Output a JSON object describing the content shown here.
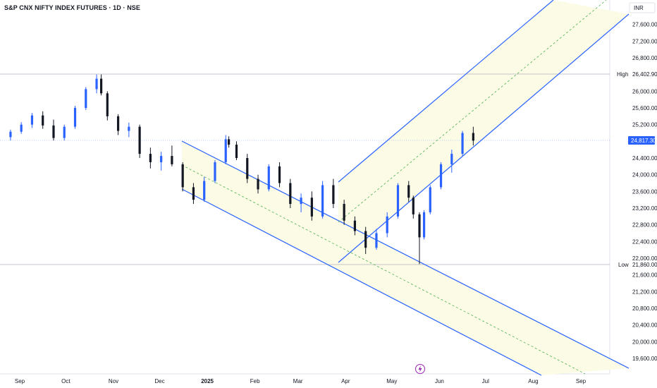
{
  "header": {
    "symbol_title": "S&P CNX NIFTY INDEX FUTURES · 1D · NSE",
    "currency": "INR"
  },
  "colors": {
    "up_candle": "#2962ff",
    "down_candle": "#131722",
    "channel_line": "#2962ff",
    "channel_fill": "#fbfbe6",
    "midline": "#4caf50",
    "ref_line": "#b2b5be",
    "current_price_bg": "#2962ff"
  },
  "icons": {
    "flash": "lightning-bolt-icon"
  },
  "chart_data": {
    "type": "candlestick",
    "title": "S&P CNX NIFTY INDEX FUTURES · 1D · NSE",
    "ylim": [
      19300,
      28000
    ],
    "y_ticks": [
      "27,600.00",
      "27,200.00",
      "26,800.00",
      "26,000.00",
      "25,600.00",
      "25,200.00",
      "24,400.00",
      "24,000.00",
      "23,600.00",
      "23,200.00",
      "22,800.00",
      "22,400.00",
      "22,000.00",
      "21,600.00",
      "21,200.00",
      "20,800.00",
      "20,400.00",
      "20,000.00",
      "19,600.00"
    ],
    "x_labels": [
      {
        "label": "Sep",
        "bold": false,
        "date": "2024-09-01"
      },
      {
        "label": "Oct",
        "bold": false,
        "date": "2024-10-01"
      },
      {
        "label": "Nov",
        "bold": false,
        "date": "2024-11-01"
      },
      {
        "label": "Dec",
        "bold": false,
        "date": "2024-12-01"
      },
      {
        "label": "2025",
        "bold": true,
        "date": "2025-01-01"
      },
      {
        "label": "Feb",
        "bold": false,
        "date": "2025-02-01"
      },
      {
        "label": "Mar",
        "bold": false,
        "date": "2025-03-01"
      },
      {
        "label": "Apr",
        "bold": false,
        "date": "2025-04-01"
      },
      {
        "label": "May",
        "bold": false,
        "date": "2025-05-01"
      },
      {
        "label": "Jun",
        "bold": false,
        "date": "2025-06-01"
      },
      {
        "label": "Jul",
        "bold": false,
        "date": "2025-07-01"
      },
      {
        "label": "Aug",
        "bold": false,
        "date": "2025-08-01"
      },
      {
        "label": "Sep",
        "bold": false,
        "date": "2025-09-01"
      }
    ],
    "high": {
      "label": "High",
      "value": "26,402.90"
    },
    "low": {
      "label": "Low",
      "value": "21,860.00"
    },
    "current_price": "24,817.30",
    "candles": [
      {
        "d": "2024-08-26",
        "o": 24900,
        "h": 25080,
        "l": 24820,
        "c": 25030
      },
      {
        "d": "2024-09-02",
        "o": 25030,
        "h": 25260,
        "l": 24980,
        "c": 25200
      },
      {
        "d": "2024-09-09",
        "o": 25200,
        "h": 25480,
        "l": 25120,
        "c": 25420
      },
      {
        "d": "2024-09-16",
        "o": 25420,
        "h": 25520,
        "l": 25100,
        "c": 25180
      },
      {
        "d": "2024-09-23",
        "o": 25180,
        "h": 25320,
        "l": 24820,
        "c": 24880
      },
      {
        "d": "2024-09-30",
        "o": 24880,
        "h": 25200,
        "l": 24820,
        "c": 25150
      },
      {
        "d": "2024-10-07",
        "o": 25150,
        "h": 25650,
        "l": 25100,
        "c": 25600
      },
      {
        "d": "2024-10-14",
        "o": 25600,
        "h": 26100,
        "l": 25550,
        "c": 26050
      },
      {
        "d": "2024-10-21",
        "o": 26050,
        "h": 26402,
        "l": 25950,
        "c": 26300
      },
      {
        "d": "2024-10-24",
        "o": 26300,
        "h": 26402,
        "l": 25900,
        "c": 25950
      },
      {
        "d": "2024-10-28",
        "o": 25950,
        "h": 26000,
        "l": 25300,
        "c": 25400
      },
      {
        "d": "2024-11-04",
        "o": 25400,
        "h": 25450,
        "l": 24950,
        "c": 25050
      },
      {
        "d": "2024-11-11",
        "o": 25050,
        "h": 25250,
        "l": 24900,
        "c": 25150
      },
      {
        "d": "2024-11-18",
        "o": 25150,
        "h": 25200,
        "l": 24400,
        "c": 24500
      },
      {
        "d": "2024-11-25",
        "o": 24500,
        "h": 24650,
        "l": 24150,
        "c": 24300
      },
      {
        "d": "2024-12-02",
        "o": 24300,
        "h": 24550,
        "l": 24100,
        "c": 24450
      },
      {
        "d": "2024-12-09",
        "o": 24450,
        "h": 24700,
        "l": 24200,
        "c": 24250
      },
      {
        "d": "2024-12-16",
        "o": 24250,
        "h": 24300,
        "l": 23600,
        "c": 23700
      },
      {
        "d": "2024-12-23",
        "o": 23700,
        "h": 23800,
        "l": 23300,
        "c": 23400
      },
      {
        "d": "2024-12-30",
        "o": 23400,
        "h": 23950,
        "l": 23350,
        "c": 23850
      },
      {
        "d": "2025-01-06",
        "o": 23850,
        "h": 24350,
        "l": 23800,
        "c": 24300
      },
      {
        "d": "2025-01-13",
        "o": 24300,
        "h": 24950,
        "l": 24250,
        "c": 24850
      },
      {
        "d": "2025-01-15",
        "o": 24850,
        "h": 24920,
        "l": 24650,
        "c": 24720
      },
      {
        "d": "2025-01-20",
        "o": 24720,
        "h": 24800,
        "l": 24350,
        "c": 24400
      },
      {
        "d": "2025-01-27",
        "o": 24400,
        "h": 24500,
        "l": 23800,
        "c": 23900
      },
      {
        "d": "2025-02-03",
        "o": 23900,
        "h": 24000,
        "l": 23550,
        "c": 23650
      },
      {
        "d": "2025-02-10",
        "o": 23650,
        "h": 24250,
        "l": 23600,
        "c": 24200
      },
      {
        "d": "2025-02-17",
        "o": 24200,
        "h": 24300,
        "l": 23700,
        "c": 23800
      },
      {
        "d": "2025-02-24",
        "o": 23800,
        "h": 23900,
        "l": 23200,
        "c": 23300
      },
      {
        "d": "2025-03-03",
        "o": 23300,
        "h": 23550,
        "l": 23100,
        "c": 23450
      },
      {
        "d": "2025-03-10",
        "o": 23450,
        "h": 23600,
        "l": 22900,
        "c": 23000
      },
      {
        "d": "2025-03-17",
        "o": 23000,
        "h": 23850,
        "l": 22950,
        "c": 23750
      },
      {
        "d": "2025-03-24",
        "o": 23750,
        "h": 23900,
        "l": 23200,
        "c": 23300
      },
      {
        "d": "2025-03-31",
        "o": 23300,
        "h": 23400,
        "l": 22800,
        "c": 22900
      },
      {
        "d": "2025-04-07",
        "o": 22900,
        "h": 23000,
        "l": 22550,
        "c": 22650
      },
      {
        "d": "2025-04-14",
        "o": 22650,
        "h": 22750,
        "l": 22100,
        "c": 22250
      },
      {
        "d": "2025-04-21",
        "o": 22250,
        "h": 22700,
        "l": 22200,
        "c": 22600
      },
      {
        "d": "2025-04-28",
        "o": 22600,
        "h": 23100,
        "l": 22500,
        "c": 23000
      },
      {
        "d": "2025-05-05",
        "o": 23000,
        "h": 23800,
        "l": 22950,
        "c": 23750
      },
      {
        "d": "2025-05-12",
        "o": 23750,
        "h": 23850,
        "l": 23350,
        "c": 23450
      },
      {
        "d": "2025-05-15",
        "o": 23450,
        "h": 23500,
        "l": 22950,
        "c": 23050
      },
      {
        "d": "2025-05-19",
        "o": 23050,
        "h": 23100,
        "l": 21860,
        "c": 22500
      },
      {
        "d": "2025-05-22",
        "o": 22500,
        "h": 23150,
        "l": 22450,
        "c": 23100
      },
      {
        "d": "2025-05-26",
        "o": 23100,
        "h": 23750,
        "l": 23050,
        "c": 23700
      },
      {
        "d": "2025-06-02",
        "o": 23700,
        "h": 24300,
        "l": 23650,
        "c": 24250
      },
      {
        "d": "2025-06-09",
        "o": 24250,
        "h": 24600,
        "l": 24050,
        "c": 24500
      },
      {
        "d": "2025-06-16",
        "o": 24500,
        "h": 25050,
        "l": 24450,
        "c": 25000
      },
      {
        "d": "2025-06-23",
        "o": 25000,
        "h": 25150,
        "l": 24700,
        "c": 24817
      }
    ]
  }
}
